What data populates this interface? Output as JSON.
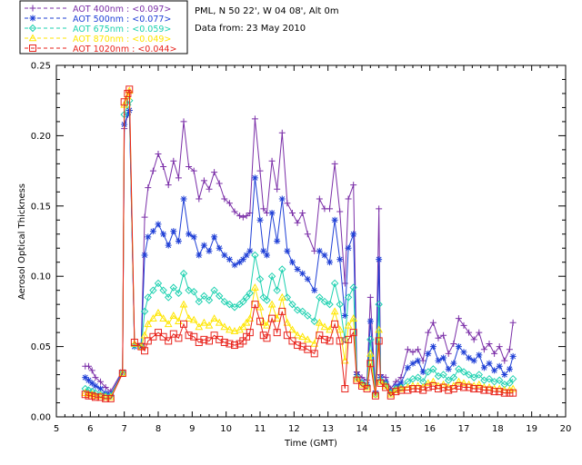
{
  "header": {
    "station": "PML, N 50 22', W 04 08', Alt 0m",
    "date_line": "Data from: 23 May 2010"
  },
  "chart_data": {
    "type": "line",
    "title": "",
    "xlabel": "Time (GMT)",
    "ylabel": "Aerosol Optical Thickness",
    "xlim": [
      5,
      20
    ],
    "ylim": [
      0,
      0.25
    ],
    "xticks": [
      5,
      6,
      7,
      8,
      9,
      10,
      11,
      12,
      13,
      14,
      15,
      16,
      17,
      18,
      19,
      20
    ],
    "yticks": [
      0.0,
      0.05,
      0.1,
      0.15,
      0.2,
      0.25
    ],
    "ytick_labels": [
      "0.00",
      "0.05",
      "0.10",
      "0.15",
      "0.20",
      "0.25"
    ],
    "grid": false,
    "legend_position": "top-left, outside plot",
    "x": [
      5.85,
      5.95,
      6.05,
      6.15,
      6.3,
      6.45,
      6.6,
      6.95,
      7.0,
      7.1,
      7.15,
      7.3,
      7.5,
      7.6,
      7.7,
      7.85,
      8.0,
      8.15,
      8.3,
      8.45,
      8.6,
      8.75,
      8.9,
      9.05,
      9.2,
      9.35,
      9.5,
      9.65,
      9.8,
      9.95,
      10.1,
      10.25,
      10.4,
      10.5,
      10.6,
      10.7,
      10.85,
      11.0,
      11.1,
      11.2,
      11.35,
      11.5,
      11.65,
      11.8,
      11.95,
      12.1,
      12.25,
      12.4,
      12.6,
      12.75,
      12.9,
      13.05,
      13.2,
      13.35,
      13.5,
      13.6,
      13.75,
      13.85,
      14.0,
      14.15,
      14.25,
      14.4,
      14.5,
      14.55,
      14.7,
      14.85,
      15.0,
      15.15,
      15.35,
      15.5,
      15.65,
      15.8,
      15.95,
      16.1,
      16.25,
      16.4,
      16.55,
      16.7,
      16.85,
      17.0,
      17.15,
      17.3,
      17.45,
      17.6,
      17.75,
      17.9,
      18.05,
      18.2,
      18.35,
      18.45
    ],
    "series": [
      {
        "name": "AOT 400nm : <0.097>",
        "color": "#7b2fa8",
        "marker": "plus",
        "values": [
          0.036,
          0.036,
          0.033,
          0.028,
          0.025,
          0.021,
          0.018,
          0.033,
          0.205,
          0.215,
          0.218,
          0.052,
          0.052,
          0.142,
          0.163,
          0.175,
          0.187,
          0.178,
          0.165,
          0.182,
          0.17,
          0.21,
          0.178,
          0.175,
          0.155,
          0.168,
          0.162,
          0.174,
          0.166,
          0.155,
          0.152,
          0.146,
          0.143,
          0.142,
          0.143,
          0.145,
          0.212,
          0.175,
          0.148,
          0.145,
          0.182,
          0.162,
          0.202,
          0.152,
          0.145,
          0.138,
          0.145,
          0.13,
          0.118,
          0.155,
          0.148,
          0.148,
          0.18,
          0.146,
          0.095,
          0.155,
          0.165,
          0.032,
          0.028,
          0.026,
          0.085,
          0.018,
          0.148,
          0.03,
          0.028,
          0.02,
          0.025,
          0.028,
          0.048,
          0.046,
          0.048,
          0.04,
          0.06,
          0.067,
          0.056,
          0.058,
          0.045,
          0.052,
          0.07,
          0.065,
          0.06,
          0.055,
          0.06,
          0.048,
          0.052,
          0.045,
          0.05,
          0.04,
          0.048,
          0.067
        ]
      },
      {
        "name": "AOT 500nm : <0.077>",
        "color": "#1f3fd6",
        "marker": "star",
        "values": [
          0.028,
          0.026,
          0.024,
          0.022,
          0.02,
          0.017,
          0.016,
          0.032,
          0.208,
          0.215,
          0.218,
          0.05,
          0.05,
          0.115,
          0.128,
          0.132,
          0.137,
          0.13,
          0.122,
          0.132,
          0.125,
          0.155,
          0.13,
          0.128,
          0.115,
          0.122,
          0.118,
          0.128,
          0.12,
          0.115,
          0.112,
          0.108,
          0.11,
          0.112,
          0.115,
          0.118,
          0.17,
          0.14,
          0.118,
          0.115,
          0.145,
          0.125,
          0.155,
          0.118,
          0.11,
          0.105,
          0.102,
          0.098,
          0.09,
          0.118,
          0.115,
          0.11,
          0.14,
          0.112,
          0.072,
          0.12,
          0.13,
          0.03,
          0.025,
          0.023,
          0.068,
          0.017,
          0.112,
          0.028,
          0.025,
          0.018,
          0.022,
          0.024,
          0.035,
          0.038,
          0.04,
          0.032,
          0.045,
          0.05,
          0.04,
          0.042,
          0.034,
          0.038,
          0.05,
          0.046,
          0.042,
          0.04,
          0.044,
          0.035,
          0.038,
          0.033,
          0.036,
          0.03,
          0.034,
          0.043
        ]
      },
      {
        "name": "AOT 675nm : <0.059>",
        "color": "#1ed1b0",
        "marker": "diamond",
        "values": [
          0.02,
          0.019,
          0.018,
          0.017,
          0.016,
          0.015,
          0.015,
          0.031,
          0.215,
          0.222,
          0.225,
          0.051,
          0.05,
          0.075,
          0.085,
          0.09,
          0.095,
          0.09,
          0.085,
          0.092,
          0.088,
          0.102,
          0.09,
          0.089,
          0.082,
          0.086,
          0.083,
          0.09,
          0.086,
          0.082,
          0.08,
          0.078,
          0.08,
          0.082,
          0.085,
          0.088,
          0.115,
          0.098,
          0.085,
          0.083,
          0.1,
          0.09,
          0.105,
          0.085,
          0.08,
          0.076,
          0.075,
          0.072,
          0.068,
          0.085,
          0.082,
          0.08,
          0.095,
          0.08,
          0.055,
          0.085,
          0.092,
          0.028,
          0.024,
          0.022,
          0.055,
          0.016,
          0.08,
          0.026,
          0.023,
          0.017,
          0.02,
          0.021,
          0.025,
          0.027,
          0.028,
          0.025,
          0.032,
          0.034,
          0.029,
          0.03,
          0.026,
          0.028,
          0.034,
          0.032,
          0.03,
          0.028,
          0.03,
          0.026,
          0.027,
          0.025,
          0.026,
          0.023,
          0.024,
          0.027
        ]
      },
      {
        "name": "AOT 870nm : <0.049>",
        "color": "#ffe600",
        "marker": "triangle",
        "values": [
          0.017,
          0.016,
          0.016,
          0.015,
          0.015,
          0.014,
          0.014,
          0.031,
          0.222,
          0.228,
          0.232,
          0.052,
          0.05,
          0.058,
          0.066,
          0.07,
          0.074,
          0.07,
          0.066,
          0.072,
          0.068,
          0.08,
          0.07,
          0.069,
          0.064,
          0.067,
          0.065,
          0.07,
          0.067,
          0.064,
          0.062,
          0.061,
          0.062,
          0.064,
          0.067,
          0.07,
          0.092,
          0.078,
          0.067,
          0.065,
          0.08,
          0.07,
          0.085,
          0.067,
          0.062,
          0.058,
          0.057,
          0.055,
          0.052,
          0.067,
          0.064,
          0.062,
          0.075,
          0.062,
          0.04,
          0.065,
          0.07,
          0.027,
          0.023,
          0.021,
          0.045,
          0.016,
          0.062,
          0.025,
          0.022,
          0.016,
          0.019,
          0.02,
          0.021,
          0.022,
          0.022,
          0.021,
          0.024,
          0.025,
          0.022,
          0.023,
          0.021,
          0.022,
          0.025,
          0.024,
          0.023,
          0.022,
          0.023,
          0.021,
          0.021,
          0.02,
          0.02,
          0.019,
          0.019,
          0.02
        ]
      },
      {
        "name": "AOT 1020nm : <0.044>",
        "color": "#e8231c",
        "marker": "square",
        "values": [
          0.016,
          0.015,
          0.015,
          0.014,
          0.014,
          0.013,
          0.013,
          0.031,
          0.224,
          0.23,
          0.233,
          0.053,
          0.05,
          0.047,
          0.054,
          0.057,
          0.06,
          0.057,
          0.054,
          0.059,
          0.056,
          0.066,
          0.058,
          0.057,
          0.053,
          0.055,
          0.054,
          0.058,
          0.055,
          0.053,
          0.052,
          0.051,
          0.052,
          0.054,
          0.057,
          0.06,
          0.08,
          0.068,
          0.058,
          0.056,
          0.07,
          0.06,
          0.075,
          0.058,
          0.054,
          0.051,
          0.05,
          0.048,
          0.045,
          0.058,
          0.055,
          0.054,
          0.066,
          0.054,
          0.02,
          0.055,
          0.06,
          0.026,
          0.022,
          0.02,
          0.038,
          0.015,
          0.054,
          0.024,
          0.021,
          0.015,
          0.018,
          0.019,
          0.019,
          0.02,
          0.02,
          0.019,
          0.021,
          0.022,
          0.02,
          0.021,
          0.019,
          0.02,
          0.022,
          0.021,
          0.021,
          0.02,
          0.02,
          0.019,
          0.019,
          0.018,
          0.018,
          0.017,
          0.017,
          0.017
        ]
      }
    ]
  }
}
